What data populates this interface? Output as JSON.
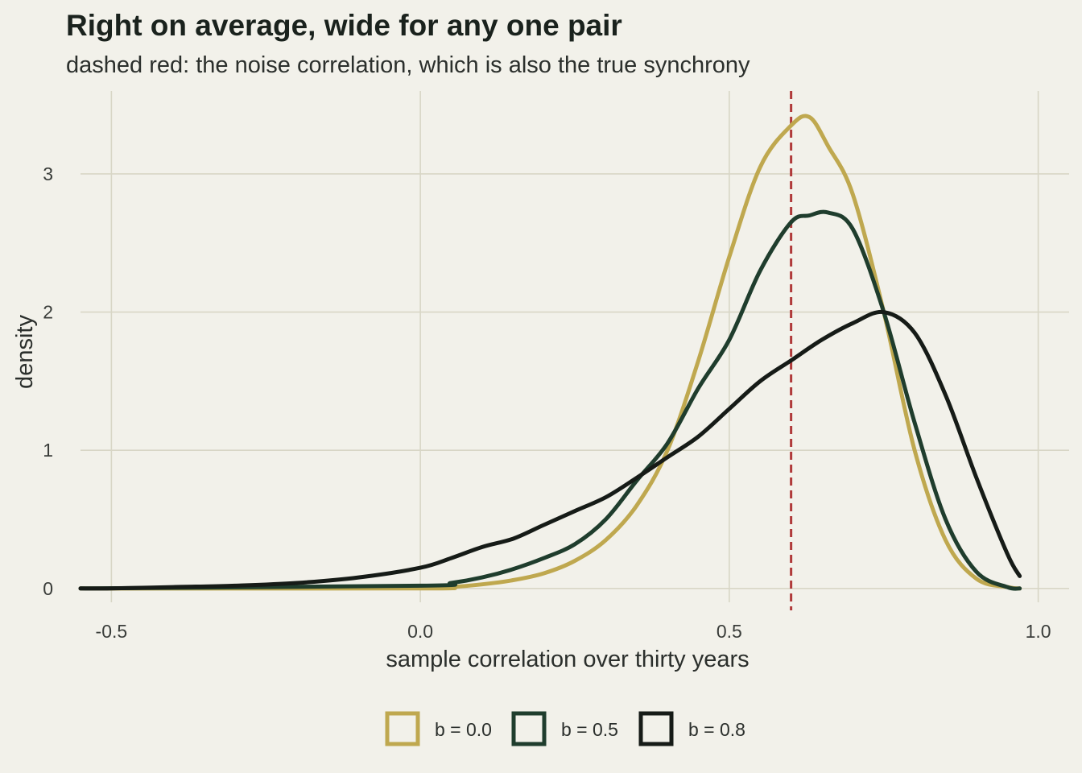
{
  "chart_data": {
    "type": "line",
    "title": "Right on average, wide for any one pair",
    "subtitle": "dashed red: the noise correlation, which is also the true synchrony",
    "xlabel": "sample correlation over thirty years",
    "ylabel": "density",
    "xlim": [
      -0.55,
      1.05
    ],
    "ylim": [
      -0.1,
      3.6
    ],
    "x_ticks": [
      -0.5,
      0.0,
      0.5,
      1.0
    ],
    "x_tick_labels": [
      "-0.5",
      "0.0",
      "0.5",
      "1.0"
    ],
    "y_ticks": [
      0,
      1,
      2,
      3
    ],
    "y_tick_labels": [
      "0",
      "1",
      "2",
      "3"
    ],
    "grid": true,
    "legend_position": "bottom",
    "reference_line": {
      "x": 0.6,
      "color": "#b03a3a",
      "style": "dashed"
    },
    "series": [
      {
        "name": "b = 0.0",
        "color": "#bfa84f",
        "x": [
          -0.55,
          0.0,
          0.05,
          0.1,
          0.15,
          0.2,
          0.25,
          0.3,
          0.35,
          0.4,
          0.45,
          0.5,
          0.55,
          0.6,
          0.63,
          0.66,
          0.7,
          0.75,
          0.8,
          0.85,
          0.9,
          0.95,
          0.97
        ],
        "y": [
          0.0,
          0.0,
          0.01,
          0.03,
          0.06,
          0.11,
          0.2,
          0.35,
          0.6,
          1.0,
          1.65,
          2.4,
          3.05,
          3.35,
          3.41,
          3.2,
          2.85,
          2.0,
          1.0,
          0.35,
          0.07,
          0.01,
          0.0
        ]
      },
      {
        "name": "b = 0.5",
        "color": "#1f3d2d",
        "x": [
          -0.55,
          0.0,
          0.05,
          0.1,
          0.15,
          0.2,
          0.25,
          0.3,
          0.35,
          0.4,
          0.45,
          0.5,
          0.55,
          0.6,
          0.63,
          0.66,
          0.7,
          0.75,
          0.8,
          0.85,
          0.9,
          0.95,
          0.97
        ],
        "y": [
          0.0,
          0.02,
          0.04,
          0.08,
          0.14,
          0.22,
          0.32,
          0.5,
          0.78,
          1.05,
          1.45,
          1.8,
          2.3,
          2.65,
          2.7,
          2.72,
          2.6,
          2.0,
          1.2,
          0.5,
          0.12,
          0.01,
          0.0
        ]
      },
      {
        "name": "b = 0.8",
        "color": "#161b17",
        "x": [
          -0.55,
          -0.5,
          -0.4,
          -0.3,
          -0.2,
          -0.1,
          0.0,
          0.05,
          0.1,
          0.15,
          0.2,
          0.25,
          0.3,
          0.35,
          0.4,
          0.45,
          0.5,
          0.55,
          0.6,
          0.65,
          0.7,
          0.75,
          0.8,
          0.85,
          0.9,
          0.95,
          0.97
        ],
        "y": [
          0.0,
          0.0,
          0.01,
          0.02,
          0.04,
          0.08,
          0.15,
          0.22,
          0.3,
          0.36,
          0.46,
          0.56,
          0.66,
          0.8,
          0.95,
          1.1,
          1.3,
          1.5,
          1.65,
          1.8,
          1.92,
          2.0,
          1.85,
          1.4,
          0.8,
          0.25,
          0.09
        ]
      }
    ]
  }
}
